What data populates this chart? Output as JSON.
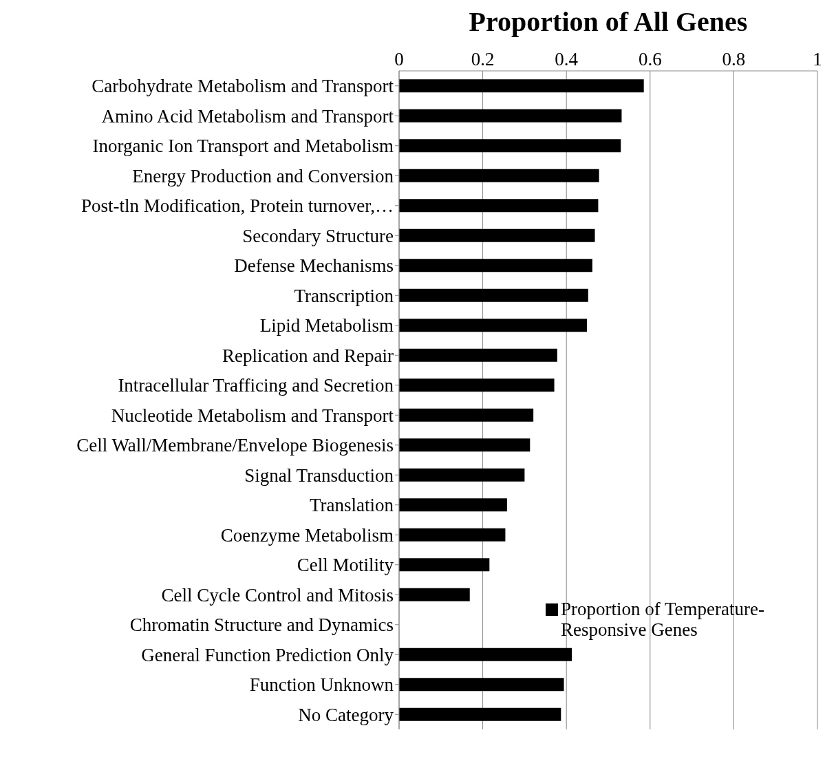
{
  "chart_data": {
    "type": "bar",
    "orientation": "horizontal",
    "title": "Proportion of All Genes",
    "categories": [
      "Carbohydrate Metabolism and Transport",
      "Amino Acid Metabolism and Transport",
      "Inorganic Ion Transport and Metabolism",
      "Energy Production and Conversion",
      "Post-tln Modification, Protein turnover,…",
      "Secondary Structure",
      "Defense Mechanisms",
      "Transcription",
      "Lipid Metabolism",
      "Replication and Repair",
      "Intracellular Trafficing and Secretion",
      "Nucleotide Metabolism and Transport",
      "Cell Wall/Membrane/Envelope Biogenesis",
      "Signal Transduction",
      "Translation",
      "Coenzyme Metabolism",
      "Cell Motility",
      "Cell Cycle Control and Mitosis",
      "Chromatin Structure and Dynamics",
      "General Function Prediction Only",
      "Function Unknown",
      "No Category"
    ],
    "series": [
      {
        "name": "Proportion of Temperature-Responsive Genes",
        "color": "#000000",
        "values": [
          0.585,
          0.532,
          0.53,
          0.478,
          0.476,
          0.468,
          0.462,
          0.452,
          0.449,
          0.378,
          0.371,
          0.321,
          0.313,
          0.3,
          0.258,
          0.254,
          0.216,
          0.169,
          0,
          0.413,
          0.394,
          0.387
        ]
      }
    ],
    "xlim": [
      0,
      1
    ],
    "xticks": [
      0,
      0.2,
      0.4,
      0.6,
      0.8,
      1
    ],
    "grid": "x",
    "legend": "right"
  }
}
